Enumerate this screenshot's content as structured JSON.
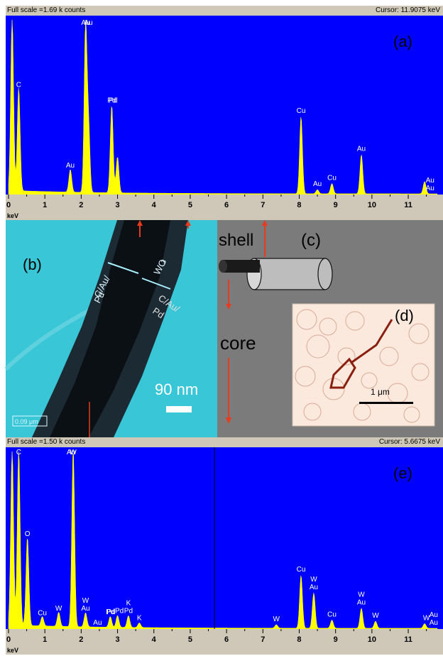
{
  "colors": {
    "plot_bg": "#0000ff",
    "spectrum": "#ffff00",
    "axis_bg": "#cfc8b8",
    "tem_bg": "#39c6d6",
    "schematic_bg": "#7b7b7b",
    "arrow": "#e83a1f",
    "inset_bg": "#fbe9dd"
  },
  "panel_a": {
    "full_scale": "Full scale =1.69 k counts",
    "cursor": "Cursor: 11.9075 keV",
    "label": "(a)"
  },
  "panel_e": {
    "full_scale": "Full scale =1.50 k counts",
    "cursor": "Cursor: 5.6675 keV",
    "label": "(e)"
  },
  "panel_b": {
    "label": "(b)",
    "ann1": "C/Au/",
    "ann1b": "Pd",
    "ann2": "WO",
    "ann2sub": "3",
    "ann3": "C/Au/",
    "ann3b": "Pd",
    "scale": "90 nm",
    "scale_box": "0.09 μm"
  },
  "panel_c": {
    "label": "(c)",
    "shell": "shell",
    "core": "core"
  },
  "panel_d": {
    "label": "(d)",
    "scale": "1 μm"
  },
  "chart_data": [
    {
      "type": "line",
      "title": "",
      "xlabel": "keV",
      "xlim": [
        0,
        11.8
      ],
      "x_ticks": [
        "0",
        "1",
        "2",
        "3",
        "4",
        "5",
        "6",
        "7",
        "8",
        "9",
        "10",
        "11"
      ],
      "x": [
        0.1,
        0.28,
        1.7,
        2.12,
        2.2,
        2.84,
        3.0,
        8.05,
        8.5,
        8.9,
        9.71,
        11.45
      ],
      "values": [
        1.69,
        1.0,
        0.22,
        1.6,
        0.65,
        0.85,
        0.35,
        0.75,
        0.04,
        0.1,
        0.38,
        0.12
      ],
      "peak_labels": [
        {
          "x": 0.28,
          "text": "C"
        },
        {
          "x": 1.7,
          "text": "Au"
        },
        {
          "x": 2.12,
          "text": "Au"
        },
        {
          "x": 2.2,
          "text": "Au"
        },
        {
          "x": 2.84,
          "text": "Pd"
        },
        {
          "x": 2.88,
          "text": "Pd"
        },
        {
          "x": 8.05,
          "text": "Cu"
        },
        {
          "x": 8.5,
          "text": "Au"
        },
        {
          "x": 8.9,
          "text": "Cu"
        },
        {
          "x": 9.71,
          "text": "Au"
        },
        {
          "x": 11.6,
          "text": "Au"
        },
        {
          "x": 11.6,
          "text": "Au"
        }
      ]
    },
    {
      "type": "line",
      "title": "",
      "xlabel": "keV",
      "xlim": [
        0,
        11.8
      ],
      "x_ticks": [
        "0",
        "1",
        "2",
        "3",
        "4",
        "5",
        "6",
        "7",
        "8",
        "9",
        "10",
        "11"
      ],
      "x": [
        0.1,
        0.28,
        0.52,
        0.93,
        1.38,
        1.78,
        2.12,
        2.8,
        3.0,
        3.3,
        3.6,
        7.37,
        8.05,
        8.4,
        8.9,
        9.71,
        10.1,
        11.45
      ],
      "values": [
        1.5,
        1.5,
        0.75,
        0.08,
        0.12,
        1.5,
        0.12,
        0.09,
        0.1,
        0.1,
        0.04,
        0.03,
        0.45,
        0.3,
        0.07,
        0.17,
        0.06,
        0.04
      ],
      "peak_labels": [
        {
          "x": 0.28,
          "text": "C"
        },
        {
          "x": 0.52,
          "text": "O"
        },
        {
          "x": 0.93,
          "text": "Cu"
        },
        {
          "x": 1.38,
          "text": "W"
        },
        {
          "x": 1.72,
          "text": "Au"
        },
        {
          "x": 1.78,
          "text": "W"
        },
        {
          "x": 2.12,
          "text": "Au"
        },
        {
          "x": 2.12,
          "text": "W"
        },
        {
          "x": 2.45,
          "text": "Au"
        },
        {
          "x": 2.8,
          "text": "Pd"
        },
        {
          "x": 2.82,
          "text": "Pd"
        },
        {
          "x": 3.05,
          "text": "Pd"
        },
        {
          "x": 3.3,
          "text": "Pd"
        },
        {
          "x": 3.3,
          "text": "K"
        },
        {
          "x": 3.6,
          "text": "K"
        },
        {
          "x": 7.37,
          "text": "W"
        },
        {
          "x": 8.05,
          "text": "Cu"
        },
        {
          "x": 8.4,
          "text": "Au"
        },
        {
          "x": 8.4,
          "text": "W"
        },
        {
          "x": 8.9,
          "text": "Cu"
        },
        {
          "x": 9.71,
          "text": "Au"
        },
        {
          "x": 9.71,
          "text": "W"
        },
        {
          "x": 10.1,
          "text": "W"
        },
        {
          "x": 11.5,
          "text": "W"
        },
        {
          "x": 11.7,
          "text": "Au"
        },
        {
          "x": 11.7,
          "text": "Au"
        }
      ]
    }
  ]
}
